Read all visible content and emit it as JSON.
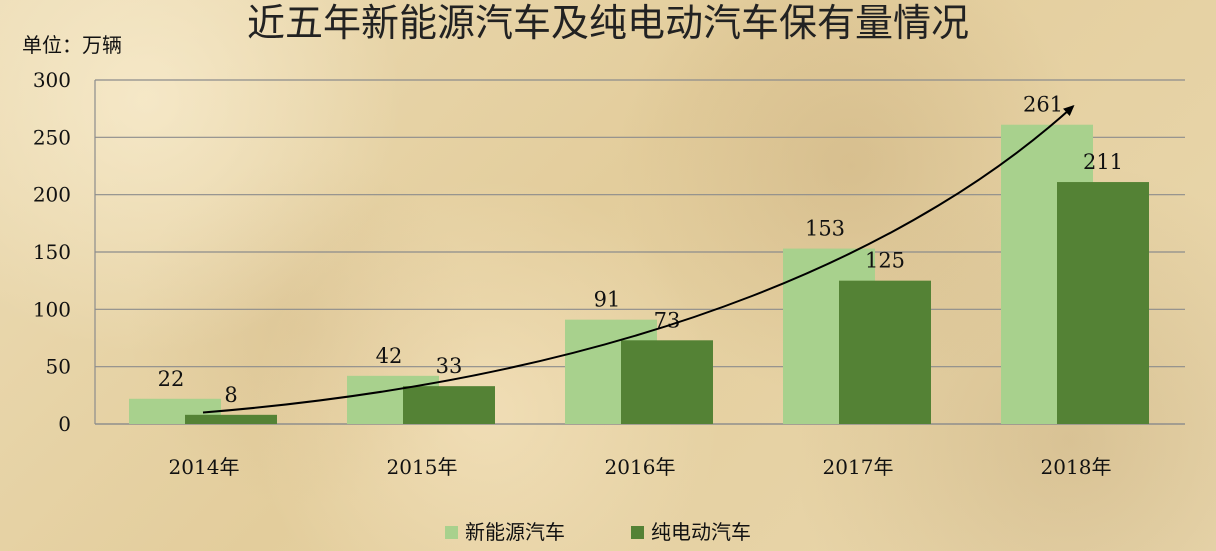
{
  "chart_data": {
    "type": "bar",
    "title": "近五年新能源汽车及纯电动汽车保有量情况",
    "unit_label": "单位：万辆",
    "categories": [
      "2014年",
      "2015年",
      "2016年",
      "2017年",
      "2018年"
    ],
    "series": [
      {
        "name": "新能源汽车",
        "values": [
          22,
          42,
          91,
          153,
          261
        ],
        "color": "#a8d18d"
      },
      {
        "name": "纯电动汽车",
        "values": [
          8,
          33,
          73,
          125,
          211
        ],
        "color": "#548235"
      }
    ],
    "ylim": [
      0,
      300
    ],
    "yticks": [
      0,
      50,
      100,
      150,
      200,
      250,
      300
    ],
    "grid": true,
    "legend_position": "bottom",
    "trend_arrow": true,
    "gridline_color": "#8c8c8c"
  }
}
